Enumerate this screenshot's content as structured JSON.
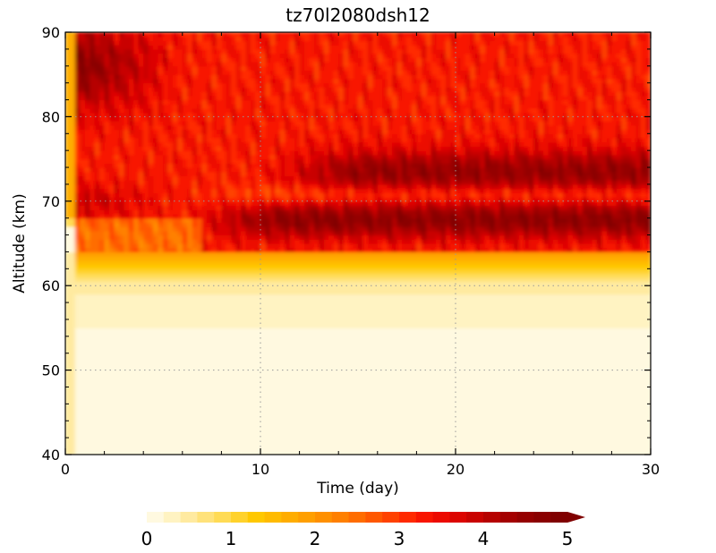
{
  "chart_data": {
    "type": "heatmap",
    "title": "tz70l2080dsh12",
    "xlabel": "Time (day)",
    "ylabel": "Altitude (km)",
    "xlim": [
      0,
      30
    ],
    "ylim": [
      40,
      90
    ],
    "x_ticks": [
      0,
      10,
      20,
      30
    ],
    "x_tick_labels": [
      "0",
      "10",
      "20",
      "30"
    ],
    "y_ticks": [
      40,
      50,
      60,
      70,
      80,
      90
    ],
    "y_tick_labels": [
      "40",
      "50",
      "60",
      "70",
      "80",
      "90"
    ],
    "grid": true,
    "grid_x": [
      10,
      20
    ],
    "grid_y": [
      50,
      60,
      70,
      80
    ],
    "colorbar": {
      "min": 0,
      "max": 5,
      "levels": 25,
      "extend": "max",
      "ticks": [
        0,
        1,
        2,
        3,
        4,
        5
      ],
      "tick_labels": [
        "0",
        "1",
        "2",
        "3",
        "4",
        "5"
      ],
      "colors": [
        "#fff9e0",
        "#fff3c2",
        "#ffeaa0",
        "#ffe27a",
        "#ffdb55",
        "#ffd22c",
        "#ffc800",
        "#ffbb00",
        "#ffad00",
        "#ff9f00",
        "#ff9000",
        "#ff8000",
        "#ff6d00",
        "#ff5800",
        "#ff4200",
        "#ff2a00",
        "#f81500",
        "#ec0a00",
        "#dc0500",
        "#c90300",
        "#b60200",
        "#a40000",
        "#950000",
        "#8a0000",
        "#800000"
      ]
    },
    "bands": [
      {
        "altitude_range": [
          40,
          55
        ],
        "value": 0.1
      },
      {
        "altitude_range": [
          55,
          62
        ],
        "value": 0.3
      },
      {
        "altitude_range": [
          62,
          65
        ],
        "value": 1.2
      },
      {
        "altitude_range": [
          65,
          69
        ],
        "value": 4.6
      },
      {
        "altitude_range": [
          69,
          72
        ],
        "value": 3.4
      },
      {
        "altitude_range": [
          72,
          76
        ],
        "value": 4.8
      },
      {
        "altitude_range": [
          76,
          84
        ],
        "value": 3.3
      },
      {
        "altitude_range": [
          84,
          90
        ],
        "value": 4.0
      }
    ]
  }
}
